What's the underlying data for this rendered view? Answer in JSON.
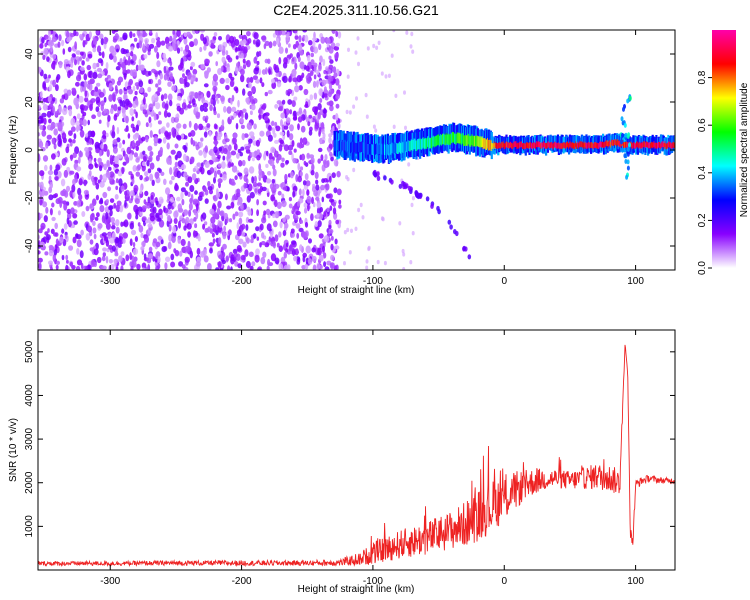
{
  "chart_data": [
    {
      "type": "heatmap",
      "title": "C2E4.2025.311.10.56.G21",
      "xlabel": "Height of straight line (km)",
      "ylabel": "Frequency (Hz)",
      "xlim": [
        -355,
        130
      ],
      "ylim": [
        -50,
        50
      ],
      "xticks": [
        -300,
        -200,
        -100,
        0,
        100
      ],
      "yticks": [
        -40,
        -20,
        0,
        20,
        40
      ],
      "colorbar": {
        "label": "Normalized spectral amplitude",
        "range": [
          0,
          1
        ],
        "ticks": [
          "0.0",
          "0.2",
          "0.4",
          "0.6",
          "0.8"
        ],
        "colors": [
          "#ffffff",
          "#8800ff",
          "#0000ff",
          "#00ffff",
          "#00ff00",
          "#ffff00",
          "#ff0000",
          "#ff00aa"
        ]
      },
      "regions": [
        {
          "name": "noise",
          "x_range": [
            -355,
            -125
          ],
          "freq_range": [
            -50,
            50
          ],
          "amplitude": 0.1
        },
        {
          "name": "carrier",
          "x": [
            -130,
            -110,
            -95,
            -80,
            -60,
            -40,
            -25,
            -10,
            10,
            40,
            70,
            85,
            95,
            130
          ],
          "freq": [
            2,
            1,
            0,
            1,
            3,
            5,
            4,
            2,
            2,
            2,
            2,
            3,
            2,
            2
          ],
          "amplitude": [
            0.3,
            0.3,
            0.35,
            0.4,
            0.5,
            0.55,
            0.6,
            0.8,
            0.9,
            0.9,
            0.9,
            0.85,
            0.9,
            0.9
          ]
        },
        {
          "name": "faint-branch",
          "x": [
            -100,
            -80,
            -60,
            -45,
            -35,
            -25
          ],
          "freq": [
            -10,
            -14,
            -20,
            -28,
            -36,
            -46
          ],
          "amplitude": 0.15
        }
      ]
    },
    {
      "type": "line",
      "xlabel": "Height of straight line (km)",
      "ylabel": "SNR (10 * v/v)",
      "xlim": [
        -355,
        130
      ],
      "ylim": [
        0,
        5500
      ],
      "xticks": [
        -300,
        -200,
        -100,
        0,
        100
      ],
      "yticks": [
        1000,
        2000,
        3000,
        4000,
        5000
      ],
      "color": "#ee2222",
      "series": [
        {
          "x": [
            -355,
            -300,
            -250,
            -200,
            -150,
            -125,
            -110,
            -100,
            -90,
            -80,
            -70,
            -60,
            -50,
            -40,
            -30,
            -20,
            -10,
            0,
            10,
            20,
            30,
            40,
            50,
            60,
            70,
            80,
            88,
            92,
            94,
            96,
            98,
            100,
            105,
            110,
            120,
            130
          ],
          "y": [
            150,
            150,
            160,
            160,
            160,
            170,
            250,
            380,
            480,
            580,
            650,
            720,
            820,
            920,
            1050,
            1250,
            1450,
            1650,
            1850,
            2000,
            2080,
            2100,
            2050,
            2100,
            2150,
            2100,
            2000,
            5200,
            4500,
            800,
            600,
            1950,
            2050,
            2100,
            2050,
            2050
          ],
          "noise": [
            50,
            50,
            55,
            60,
            60,
            80,
            150,
            250,
            300,
            330,
            360,
            380,
            420,
            450,
            520,
            600,
            600,
            550,
            420,
            320,
            260,
            220,
            220,
            250,
            300,
            320,
            300,
            0,
            0,
            200,
            200,
            120,
            90,
            80,
            70,
            60
          ]
        }
      ]
    }
  ]
}
